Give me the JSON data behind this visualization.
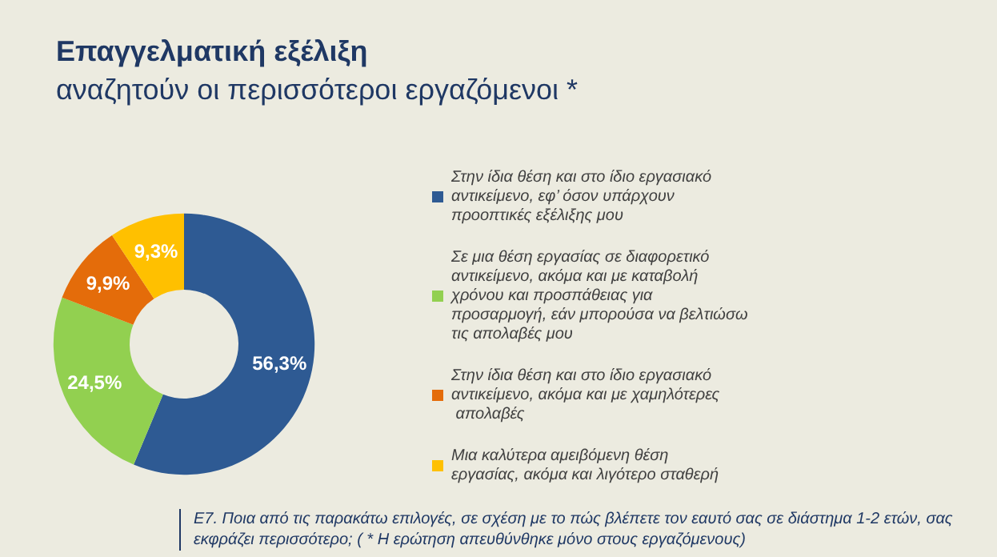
{
  "chart_data": {
    "type": "donut",
    "title": "Επαγγελματική εξέλιξη",
    "subtitle": "αναζητούν οι περισσότεροι εργαζόμενοι *",
    "categories": [
      "Στην ίδια θέση και στο ίδιο εργασιακό αντικείμενο, εφ’ όσον υπάρχουν προοπτικές εξέλιξης μου",
      "Σε μια θέση εργασίας σε διαφορετικό αντικείμενο, ακόμα και με καταβολή χρόνου και προσπάθειας για προσαρμογή, εάν μπορούσα να βελτιώσω τις απολαβές μου",
      "Στην ίδια θέση και στο ίδιο εργασιακό αντικείμενο, ακόμα και με χαμηλότερες απολαβές",
      "Μια καλύτερα αμειβόμενη θέση εργασίας, ακόμα και λιγότερο σταθερή"
    ],
    "values": [
      56.3,
      24.5,
      9.9,
      9.3
    ],
    "colors": [
      "#2e5a93",
      "#92d050",
      "#e46c0a",
      "#ffc000"
    ],
    "value_labels": [
      "56,3%",
      "24,5%",
      "9,9%",
      "9,3%"
    ],
    "legend": "right",
    "annotations": [
      "E7. Ποια από τις παρακάτω επιλογές, σε σχέση με το πώς βλέπετε τον εαυτό σας σε διάστημα 1-2 ετών, σας εκφράζει περισσότερο; ( * Η ερώτηση απευθύνθηκε μόνο στους εργαζόμενους)"
    ]
  }
}
